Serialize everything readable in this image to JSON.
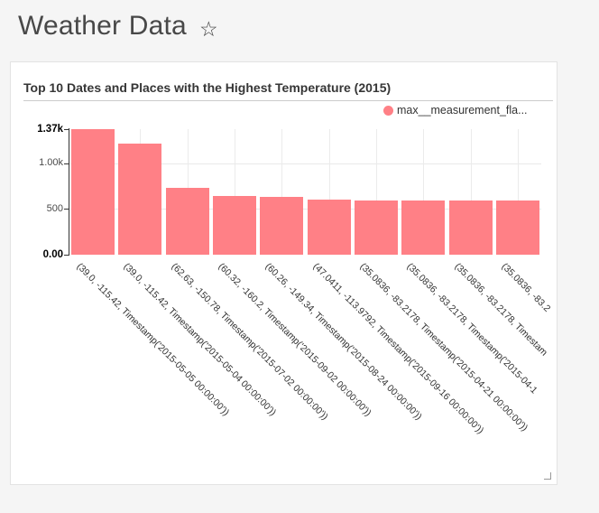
{
  "page": {
    "title": "Weather Data",
    "favorite_icon": "star-outline",
    "favorite_glyph": "☆"
  },
  "colors": {
    "page_background": "#f5f5f5",
    "card_background": "#ffffff",
    "bar": "#ff8086",
    "axis": "#333333",
    "gridline": "#e9e9e9",
    "title_text": "#363636",
    "header_text": "#484848"
  },
  "card": {
    "title": "Top 10 Dates and Places with the Highest Temperature (2015)",
    "legend": {
      "label": "max__measurement_fla...",
      "color": "#ff8086"
    },
    "resize_handle": "bottom-right"
  },
  "chart_data": {
    "type": "bar",
    "title": "Top 10 Dates and Places with the Highest Temperature (2015)",
    "legend": [
      "max__measurement_fla..."
    ],
    "legend_position": "top-right",
    "grid": true,
    "bar_color": "#ff8086",
    "ylim": [
      0,
      1370
    ],
    "yticks": [
      {
        "label": "1.37k",
        "value": 1370,
        "bold": true
      },
      {
        "label": "1.00k",
        "value": 1000,
        "bold": false
      },
      {
        "label": "500",
        "value": 500,
        "bold": false
      },
      {
        "label": "0.00",
        "value": 0,
        "bold": true
      }
    ],
    "categories": [
      "(39.0, -115.42, Timestamp('2015-05-05 00:00:00'))",
      "(39.0, -115.42, Timestamp('2015-05-04 00:00:00'))",
      "(62.63, -150.78, Timestamp('2015-07-02 00:00:00'))",
      "(60.32, -160.2, Timestamp('2015-09-02 00:00:00'))",
      "(60.26, -149.34, Timestamp('2015-08-24 00:00:00'))",
      "(47.0411, -113.9792, Timestamp('2015-09-16 00:00:00'))",
      "(35.0836, -83.2178, Timestamp('2015-04-21 00:00:00'))",
      "(35.0836, -83.2178, Timestamp('2015-04-1",
      "(35.0836, -83.2178, Timestam",
      "(35.0836, -83.2"
    ],
    "values": [
      1370,
      1210,
      725,
      640,
      630,
      600,
      595,
      595,
      595,
      590
    ],
    "xlabel": "",
    "ylabel": ""
  }
}
